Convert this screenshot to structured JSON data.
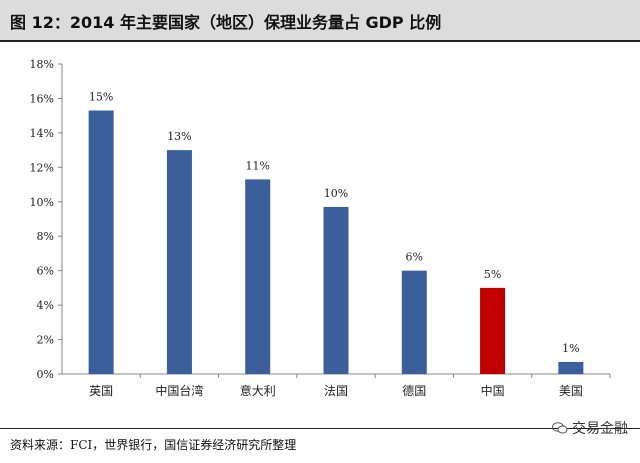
{
  "header": {
    "title": "图 12：2014 年主要国家（地区）保理业务量占 GDP 比例"
  },
  "footer": {
    "source": "资料来源：FCI，世界银行，国信证券经济研究所整理",
    "watermark": "交易金融"
  },
  "chart_data": {
    "type": "bar",
    "title": "",
    "xlabel": "",
    "ylabel": "",
    "categories": [
      "英国",
      "中国台湾",
      "意大利",
      "法国",
      "德国",
      "中国",
      "美国"
    ],
    "values": [
      15.3,
      13.0,
      11.3,
      9.7,
      6.0,
      5.0,
      0.7
    ],
    "data_labels": [
      "15%",
      "13%",
      "11%",
      "10%",
      "6%",
      "5%",
      "1%"
    ],
    "bar_colors": [
      "#3a5f9a",
      "#3a5f9a",
      "#3a5f9a",
      "#3a5f9a",
      "#3a5f9a",
      "#c00000",
      "#3a5f9a"
    ],
    "ylim": [
      0,
      18
    ],
    "yticks": [
      "0%",
      "2%",
      "4%",
      "6%",
      "8%",
      "10%",
      "12%",
      "14%",
      "16%",
      "18%"
    ],
    "grid": false,
    "legend": "none"
  }
}
